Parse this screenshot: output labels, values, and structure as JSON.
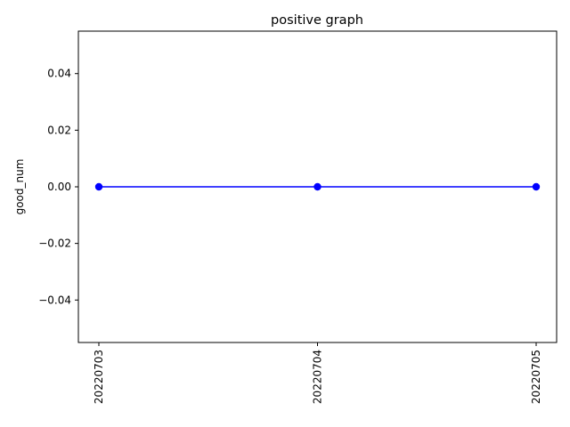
{
  "chart_data": {
    "type": "line",
    "title": "positive graph",
    "xlabel": "",
    "ylabel": "good_num",
    "categories": [
      "20220703",
      "20220704",
      "20220705"
    ],
    "series": [
      {
        "values": [
          0.0,
          0.0,
          0.0
        ],
        "color": "#0000ff",
        "marker": "circle"
      }
    ],
    "ylim": [
      -0.055,
      0.055
    ],
    "yticks": [
      -0.04,
      -0.02,
      0.0,
      0.02,
      0.04
    ],
    "ytick_labels": [
      "−0.04",
      "−0.02",
      "0.00",
      "0.02",
      "0.04"
    ],
    "grid": false,
    "xtick_rotation": "vertical"
  }
}
